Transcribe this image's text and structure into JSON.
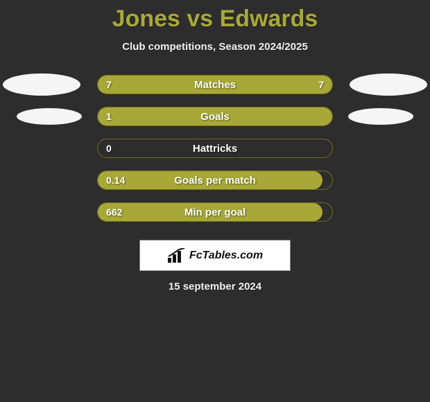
{
  "title": "Jones vs Edwards",
  "subtitle": "Club competitions, Season 2024/2025",
  "date": "15 september 2024",
  "logo_text": "FcTables.com",
  "colors": {
    "background": "#2d2d2d",
    "accent": "#a8a838",
    "title": "#a8a838",
    "text": "#f0f0f0",
    "bar_border": "#6f6f1e",
    "ellipse": "#f5f5f5",
    "logo_bg": "#ffffff"
  },
  "metrics": [
    {
      "label": "Matches",
      "left_value": "7",
      "right_value": "7",
      "left_fill_pct": 50,
      "right_fill_pct": 50,
      "full": true,
      "ellipses": "big"
    },
    {
      "label": "Goals",
      "left_value": "1",
      "right_value": "",
      "left_fill_pct": 100,
      "right_fill_pct": 0,
      "full": true,
      "ellipses": "small"
    },
    {
      "label": "Hattricks",
      "left_value": "0",
      "right_value": "",
      "left_fill_pct": 0,
      "right_fill_pct": 0,
      "full": false,
      "ellipses": "none"
    },
    {
      "label": "Goals per match",
      "left_value": "0.14",
      "right_value": "",
      "left_fill_pct": 96,
      "right_fill_pct": 0,
      "full": false,
      "ellipses": "none"
    },
    {
      "label": "Min per goal",
      "left_value": "662",
      "right_value": "",
      "left_fill_pct": 96,
      "right_fill_pct": 0,
      "full": false,
      "ellipses": "none"
    }
  ]
}
